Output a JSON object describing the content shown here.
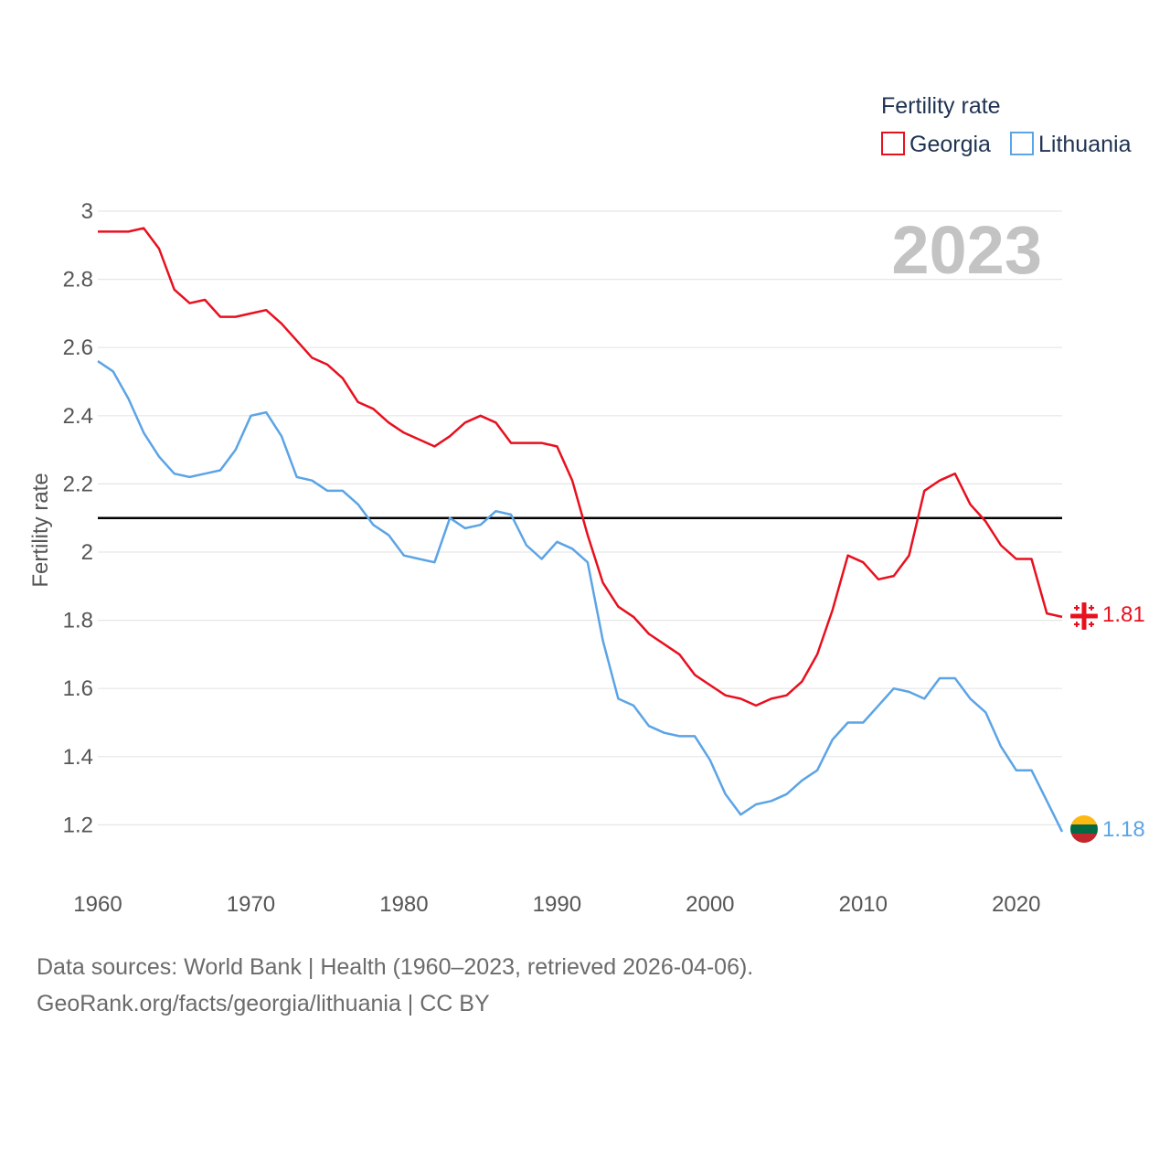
{
  "chart_data": {
    "type": "line",
    "title": "",
    "year_label": "2023",
    "legend_title": "Fertility rate",
    "ylabel": "Fertility rate",
    "xlabel": "",
    "xlim": [
      1960,
      2023
    ],
    "ylim": [
      1.0,
      3.0
    ],
    "x_ticks": [
      1960,
      1970,
      1980,
      1990,
      2000,
      2010,
      2020
    ],
    "y_ticks": [
      1.2,
      1.4,
      1.6,
      1.8,
      2,
      2.2,
      2.4,
      2.6,
      2.8,
      3
    ],
    "reference_line": 2.1,
    "x": [
      1960,
      1961,
      1962,
      1963,
      1964,
      1965,
      1966,
      1967,
      1968,
      1969,
      1970,
      1971,
      1972,
      1973,
      1974,
      1975,
      1976,
      1977,
      1978,
      1979,
      1980,
      1981,
      1982,
      1983,
      1984,
      1985,
      1986,
      1987,
      1988,
      1989,
      1990,
      1991,
      1992,
      1993,
      1994,
      1995,
      1996,
      1997,
      1998,
      1999,
      2000,
      2001,
      2002,
      2003,
      2004,
      2005,
      2006,
      2007,
      2008,
      2009,
      2010,
      2011,
      2012,
      2013,
      2014,
      2015,
      2016,
      2017,
      2018,
      2019,
      2020,
      2021,
      2022,
      2023
    ],
    "series": [
      {
        "name": "Georgia",
        "color": "#e8101f",
        "end_label": "1.81",
        "values": [
          2.94,
          2.94,
          2.94,
          2.95,
          2.89,
          2.77,
          2.73,
          2.74,
          2.69,
          2.69,
          2.7,
          2.71,
          2.67,
          2.62,
          2.57,
          2.55,
          2.51,
          2.44,
          2.42,
          2.38,
          2.35,
          2.33,
          2.31,
          2.34,
          2.38,
          2.4,
          2.38,
          2.32,
          2.32,
          2.32,
          2.31,
          2.21,
          2.05,
          1.91,
          1.84,
          1.81,
          1.76,
          1.73,
          1.7,
          1.64,
          1.61,
          1.58,
          1.57,
          1.55,
          1.57,
          1.58,
          1.62,
          1.7,
          1.83,
          1.99,
          1.97,
          1.92,
          1.93,
          1.99,
          2.18,
          2.21,
          2.23,
          2.14,
          2.09,
          2.02,
          1.98,
          1.98,
          1.82,
          1.81
        ]
      },
      {
        "name": "Lithuania",
        "color": "#5ba4e6",
        "end_label": "1.18",
        "values": [
          2.56,
          2.53,
          2.45,
          2.35,
          2.28,
          2.23,
          2.22,
          2.23,
          2.24,
          2.3,
          2.4,
          2.41,
          2.34,
          2.22,
          2.21,
          2.18,
          2.18,
          2.14,
          2.08,
          2.05,
          1.99,
          1.98,
          1.97,
          2.1,
          2.07,
          2.08,
          2.12,
          2.11,
          2.02,
          1.98,
          2.03,
          2.01,
          1.97,
          1.74,
          1.57,
          1.55,
          1.49,
          1.47,
          1.46,
          1.46,
          1.39,
          1.29,
          1.23,
          1.26,
          1.27,
          1.29,
          1.33,
          1.36,
          1.45,
          1.5,
          1.5,
          1.55,
          1.6,
          1.59,
          1.57,
          1.63,
          1.63,
          1.57,
          1.53,
          1.43,
          1.36,
          1.36,
          1.27,
          1.18
        ]
      }
    ]
  },
  "footer": {
    "line1": "Data sources: World Bank | Health (1960–2023, retrieved 2026-04-06).",
    "line2": "GeoRank.org/facts/georgia/lithuania | CC BY"
  },
  "colors": {
    "grid": "#e6e6e6",
    "reference": "#000000",
    "tick_text": "#555555",
    "legend_text": "#1f3352",
    "year_label": "#c3c3c3"
  },
  "icons": {
    "georgia_marker": "georgia-flag-icon",
    "lithuania_marker": "lithuania-flag-icon"
  }
}
